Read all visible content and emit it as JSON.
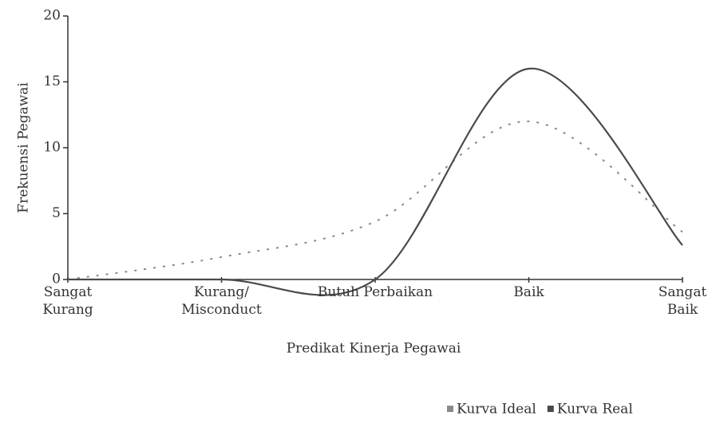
{
  "chart_data": {
    "type": "line",
    "ylabel": "Frekuensi Pegawai",
    "xlabel": "Predikat Kinerja Pegawai",
    "categories": [
      "Sangat\nKurang",
      "Kurang/\nMisconduct",
      "Butuh Perbaikan",
      "Baik",
      "Sangat\nBaik"
    ],
    "series": [
      {
        "name": "Kurva Ideal",
        "color": "#8a8a8a",
        "dash": true,
        "values": [
          0,
          1.7,
          4.4,
          12,
          3.6
        ]
      },
      {
        "name": "Kurva Real",
        "color": "#4a4a4a",
        "dash": false,
        "values": [
          0,
          0,
          0,
          16,
          2.6
        ]
      }
    ],
    "ylim": [
      0,
      20
    ],
    "yticks": [
      0,
      5,
      10,
      15,
      20
    ]
  }
}
